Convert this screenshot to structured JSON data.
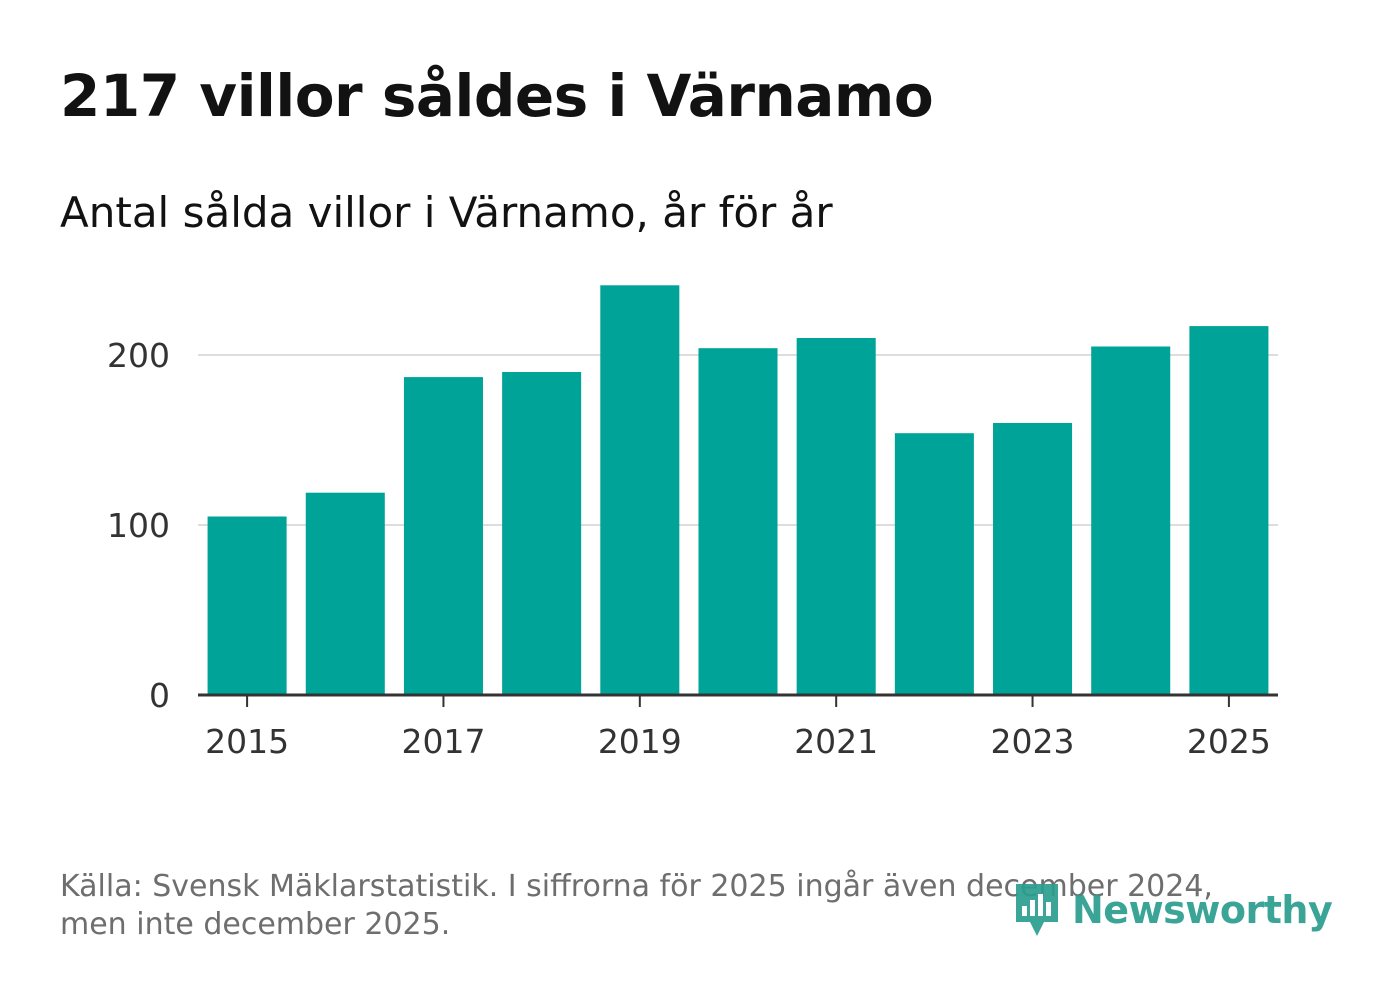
{
  "header": {
    "title": "217 villor såldes i Värnamo",
    "subtitle": "Antal sålda villor i Värnamo, år för år"
  },
  "footer": {
    "source_line1": "Källa: Svensk Mäklarstatistik. I siffrorna för 2025 ingår även december 2024,",
    "source_line2": "men inte december 2025.",
    "brand": "Newsworthy",
    "brand_color": "#2a9d8f"
  },
  "chart_data": {
    "type": "bar",
    "title": "217 villor såldes i Värnamo",
    "subtitle": "Antal sålda villor i Värnamo, år för år",
    "xlabel": "",
    "ylabel": "",
    "categories": [
      "2015",
      "2016",
      "2017",
      "2018",
      "2019",
      "2020",
      "2021",
      "2022",
      "2023",
      "2024",
      "2025"
    ],
    "values": [
      105,
      119,
      187,
      190,
      241,
      204,
      210,
      154,
      160,
      205,
      217
    ],
    "x_tick_labels": [
      "2015",
      "2017",
      "2019",
      "2021",
      "2023",
      "2025"
    ],
    "y_ticks": [
      "0",
      "100",
      "200"
    ],
    "ylim": [
      0,
      260
    ],
    "grid": true,
    "bar_color": "#00a398"
  }
}
